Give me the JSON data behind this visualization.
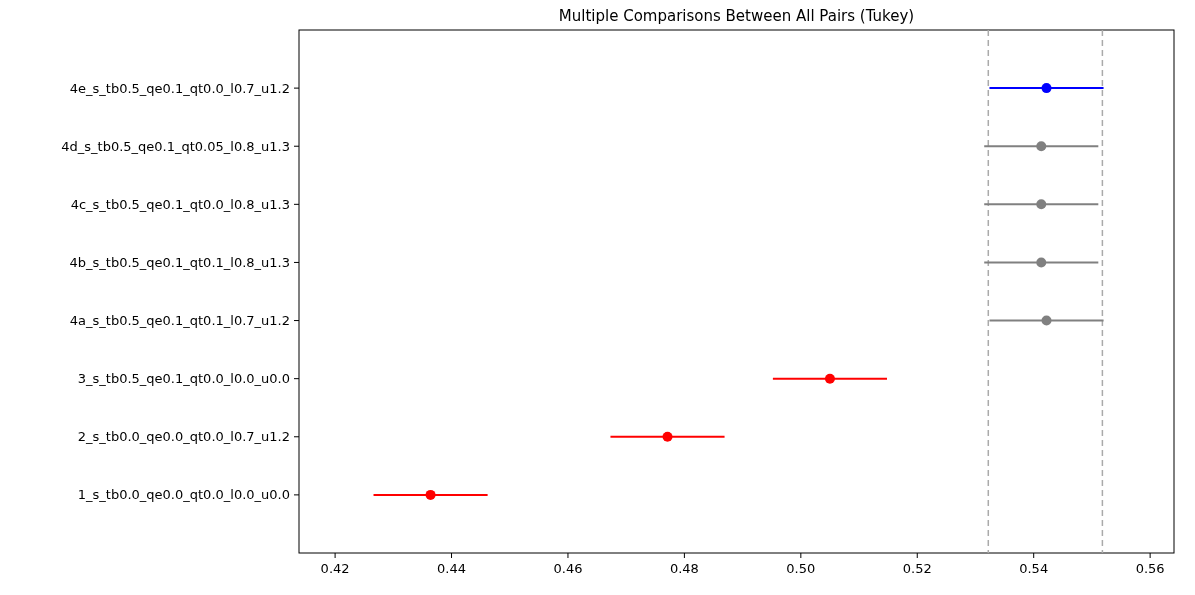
{
  "chart_data": {
    "type": "scatter",
    "orientation": "horizontal",
    "title": "Multiple Comparisons Between All Pairs (Tukey)",
    "categories": [
      "4e_s_tb0.5_qe0.1_qt0.0_l0.7_u1.2",
      "4d_s_tb0.5_qe0.1_qt0.05_l0.8_u1.3",
      "4c_s_tb0.5_qe0.1_qt0.0_l0.8_u1.3",
      "4b_s_tb0.5_qe0.1_qt0.1_l0.8_u1.3",
      "4a_s_tb0.5_qe0.1_qt0.1_l0.7_u1.2",
      "3_s_tb0.5_qe0.1_qt0.0_l0.0_u0.0",
      "2_s_tb0.0_qe0.0_qt0.0_l0.7_u1.2",
      "1_s_tb0.0_qe0.0_qt0.0_l0.0_u0.0"
    ],
    "values": [
      0.5422,
      0.5413,
      0.5413,
      0.5413,
      0.5422,
      0.505,
      0.4771,
      0.4364
    ],
    "errors": [
      0.0098,
      0.0098,
      0.0098,
      0.0098,
      0.0098,
      0.0098,
      0.0098,
      0.0098
    ],
    "colors": [
      "#0000ff",
      "#808080",
      "#808080",
      "#808080",
      "#808080",
      "#ff0000",
      "#ff0000",
      "#ff0000"
    ],
    "marker": "circle",
    "xlim": [
      0.4138,
      0.5641
    ],
    "xticks": [
      {
        "value": 0.42,
        "label": "0.42"
      },
      {
        "value": 0.44,
        "label": "0.44"
      },
      {
        "value": 0.46,
        "label": "0.46"
      },
      {
        "value": 0.48,
        "label": "0.48"
      },
      {
        "value": 0.5,
        "label": "0.50"
      },
      {
        "value": 0.52,
        "label": "0.52"
      },
      {
        "value": 0.54,
        "label": "0.54"
      },
      {
        "value": 0.56,
        "label": "0.56"
      }
    ],
    "ref_lines": [
      {
        "axis": "x",
        "value": 0.5322,
        "color": "#aaaaaa",
        "line_style": "dashed"
      },
      {
        "axis": "x",
        "value": 0.5518,
        "color": "#aaaaaa",
        "line_style": "dashed"
      }
    ],
    "grid": false
  }
}
